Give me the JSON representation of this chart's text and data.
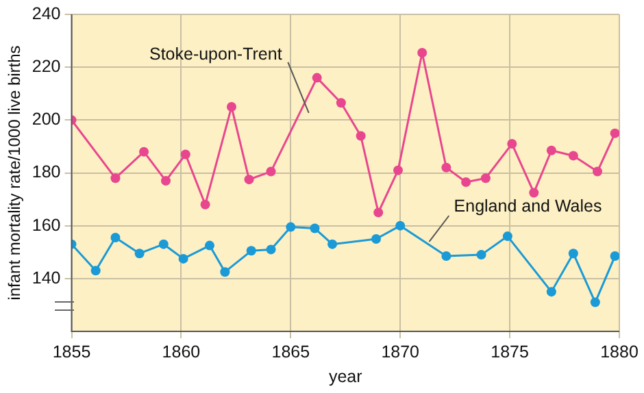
{
  "chart_data": {
    "type": "line",
    "xlabel": "year",
    "ylabel": "infant mortality rate/1000 live births",
    "xlim": [
      1855,
      1880
    ],
    "xticks": [
      1855,
      1860,
      1865,
      1870,
      1875,
      1880
    ],
    "ylim": [
      120,
      240
    ],
    "yticks": [
      140,
      160,
      180,
      200,
      220,
      240
    ],
    "grid": true,
    "legend": false,
    "marker": "circle",
    "line_style": "solid",
    "series": [
      {
        "name": "Stoke-upon-Trent",
        "color": "#e8468e",
        "x": [
          1855,
          1857,
          1858.3,
          1859.3,
          1860.2,
          1861.1,
          1862.3,
          1863.1,
          1864.1,
          1866.2,
          1867.3,
          1868.2,
          1869,
          1869.9,
          1871,
          1872.1,
          1873,
          1873.9,
          1875.1,
          1876.1,
          1876.9,
          1877.9,
          1879,
          1879.8
        ],
        "values": [
          200,
          178,
          188,
          177,
          187,
          168,
          205,
          177.5,
          180.5,
          216,
          206.5,
          194,
          165,
          181,
          225.5,
          182,
          176.5,
          178,
          191,
          172.5,
          188.5,
          186.5,
          180.5,
          195
        ]
      },
      {
        "name": "England and Wales",
        "color": "#1a9ad6",
        "x": [
          1855,
          1856.1,
          1857,
          1858.1,
          1859.2,
          1860.1,
          1861.3,
          1862,
          1863.2,
          1864.1,
          1865,
          1866.1,
          1866.9,
          1868.9,
          1870,
          1872.1,
          1873.7,
          1874.9,
          1876.9,
          1877.9,
          1878.9,
          1879.8
        ],
        "values": [
          153,
          143,
          155.5,
          149.5,
          153,
          147.5,
          152.5,
          142.5,
          150.5,
          151,
          159.5,
          159,
          153,
          155,
          160,
          148.5,
          149,
          156,
          135,
          149.5,
          131,
          148.5
        ]
      }
    ]
  }
}
